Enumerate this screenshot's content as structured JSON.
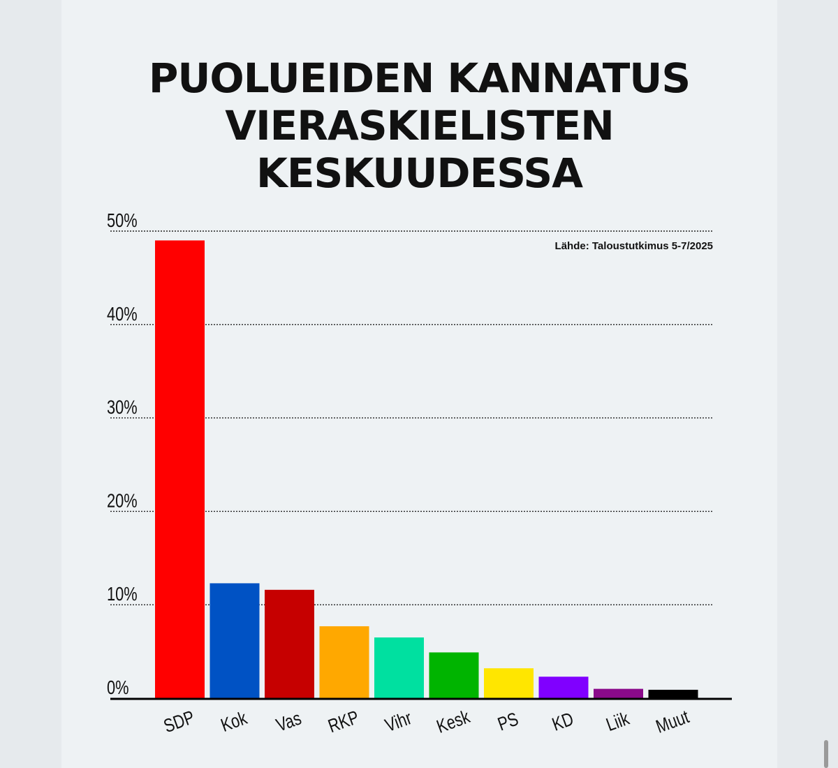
{
  "title_lines": [
    "PUOLUEIDEN KANNATUS",
    "VIERASKIELISTEN",
    "KESKUUDESSA"
  ],
  "source_note": "Lähde: Taloustutkimus 5-7/2025",
  "chart_data": {
    "type": "bar",
    "title": "PUOLUEIDEN KANNATUS VIERASKIELISTEN KESKUUDESSA",
    "categories": [
      "SDP",
      "Kok",
      "Vas",
      "RKP",
      "Vihr",
      "Kesk",
      "PS",
      "KD",
      "Liik",
      "Muut"
    ],
    "values": [
      49.0,
      12.3,
      11.6,
      7.7,
      6.5,
      4.9,
      3.2,
      2.3,
      1.0,
      0.9
    ],
    "colors": [
      "#ff0000",
      "#0052c4",
      "#c60000",
      "#ffa800",
      "#00e0a0",
      "#00b400",
      "#ffe600",
      "#8000ff",
      "#8a0a8a",
      "#000000"
    ],
    "yticks": [
      "0%",
      "10%",
      "20%",
      "30%",
      "40%",
      "50%"
    ],
    "ytick_values": [
      0,
      10,
      20,
      30,
      40,
      50
    ],
    "ylim": [
      0,
      50
    ],
    "grid": true,
    "xlabel": "",
    "ylabel": ""
  }
}
